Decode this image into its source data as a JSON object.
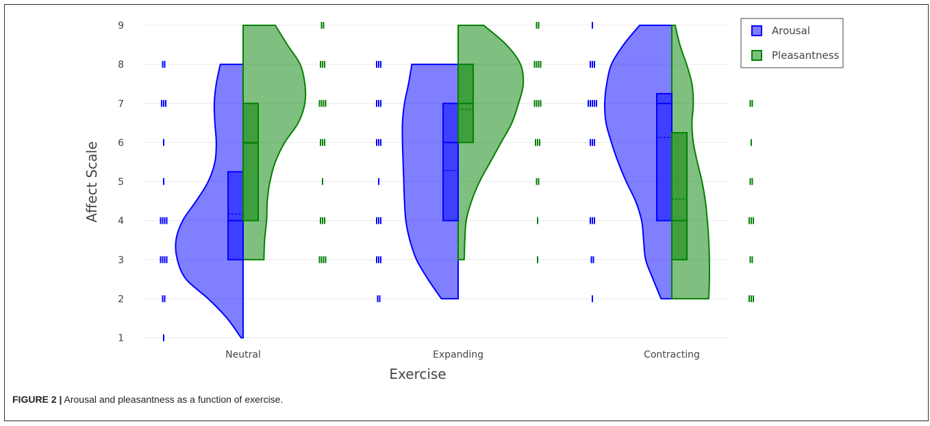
{
  "caption": {
    "label": "FIGURE 2 |",
    "text": "Arousal and pleasantness as a function of exercise."
  },
  "chart_data": {
    "type": "violin",
    "title": "",
    "xlabel": "Exercise",
    "ylabel": "Affect Scale",
    "categories": [
      "Neutral",
      "Expanding",
      "Contracting"
    ],
    "y_ticks": [
      1,
      2,
      3,
      4,
      5,
      6,
      7,
      8,
      9
    ],
    "ylim": [
      1,
      9
    ],
    "grid": true,
    "legend_position": "top-right",
    "colors": {
      "Arousal": "#0000ff",
      "Pleasantness": "#008000",
      "grid": "#e9e9e9",
      "text": "#444444"
    },
    "series": [
      {
        "name": "Arousal",
        "side": "negative",
        "groups": [
          {
            "category": "Neutral",
            "box": {
              "q1": 3,
              "median": 4,
              "q3": 5.25,
              "mean": 4.17
            },
            "range": [
              1,
              8
            ],
            "density": [
              [
                1,
                0.03
              ],
              [
                1.5,
                0.24
              ],
              [
                2,
                0.52
              ],
              [
                2.5,
                0.85
              ],
              [
                3,
                0.98
              ],
              [
                3.5,
                1.0
              ],
              [
                4,
                0.9
              ],
              [
                4.5,
                0.7
              ],
              [
                5,
                0.52
              ],
              [
                5.5,
                0.42
              ],
              [
                6,
                0.4
              ],
              [
                6.5,
                0.42
              ],
              [
                7,
                0.43
              ],
              [
                7.5,
                0.4
              ],
              [
                8,
                0.34
              ]
            ],
            "points": [
              {
                "y": 1,
                "n": 1
              },
              {
                "y": 2,
                "n": 2
              },
              {
                "y": 3,
                "n": 4
              },
              {
                "y": 4,
                "n": 4
              },
              {
                "y": 5,
                "n": 1
              },
              {
                "y": 6,
                "n": 1
              },
              {
                "y": 7,
                "n": 3
              },
              {
                "y": 8,
                "n": 2
              }
            ]
          },
          {
            "category": "Expanding",
            "box": {
              "q1": 4,
              "median": 6,
              "q3": 7,
              "mean": 5.28
            },
            "range": [
              2,
              8
            ],
            "density": [
              [
                2,
                0.25
              ],
              [
                2.5,
                0.45
              ],
              [
                3,
                0.62
              ],
              [
                3.5,
                0.72
              ],
              [
                4,
                0.78
              ],
              [
                4.5,
                0.8
              ],
              [
                5,
                0.81
              ],
              [
                5.5,
                0.82
              ],
              [
                6,
                0.83
              ],
              [
                6.5,
                0.83
              ],
              [
                7,
                0.8
              ],
              [
                7.5,
                0.74
              ],
              [
                8,
                0.69
              ]
            ],
            "points": [
              {
                "y": 2,
                "n": 2
              },
              {
                "y": 3,
                "n": 3
              },
              {
                "y": 4,
                "n": 3
              },
              {
                "y": 5,
                "n": 1
              },
              {
                "y": 6,
                "n": 3
              },
              {
                "y": 7,
                "n": 3
              },
              {
                "y": 8,
                "n": 3
              }
            ]
          },
          {
            "category": "Contracting",
            "box": {
              "q1": 4,
              "median": 7,
              "q3": 7.25,
              "mean": 6.13
            },
            "range": [
              2,
              9
            ],
            "density": [
              [
                2,
                0.16
              ],
              [
                2.5,
                0.28
              ],
              [
                3,
                0.39
              ],
              [
                3.5,
                0.42
              ],
              [
                4,
                0.45
              ],
              [
                4.5,
                0.54
              ],
              [
                5,
                0.68
              ],
              [
                5.5,
                0.8
              ],
              [
                6,
                0.9
              ],
              [
                6.5,
                0.98
              ],
              [
                7,
                1.0
              ],
              [
                7.5,
                0.97
              ],
              [
                8,
                0.9
              ],
              [
                8.5,
                0.72
              ],
              [
                9,
                0.48
              ]
            ],
            "points": [
              {
                "y": 2,
                "n": 1
              },
              {
                "y": 3,
                "n": 2
              },
              {
                "y": 4,
                "n": 3
              },
              {
                "y": 6,
                "n": 3
              },
              {
                "y": 7,
                "n": 5
              },
              {
                "y": 8,
                "n": 3
              },
              {
                "y": 9,
                "n": 1
              }
            ]
          }
        ]
      },
      {
        "name": "Pleasantness",
        "side": "positive",
        "groups": [
          {
            "category": "Neutral",
            "box": {
              "q1": 4,
              "median": 6,
              "q3": 7,
              "mean": 5.97
            },
            "range": [
              3,
              9
            ],
            "density": [
              [
                3,
                0.31
              ],
              [
                3.5,
                0.32
              ],
              [
                4,
                0.35
              ],
              [
                4.5,
                0.36
              ],
              [
                5,
                0.4
              ],
              [
                5.5,
                0.48
              ],
              [
                6,
                0.62
              ],
              [
                6.5,
                0.82
              ],
              [
                7,
                0.92
              ],
              [
                7.5,
                0.92
              ],
              [
                8,
                0.85
              ],
              [
                8.5,
                0.66
              ],
              [
                9,
                0.48
              ]
            ],
            "points": [
              {
                "y": 3,
                "n": 4
              },
              {
                "y": 4,
                "n": 3
              },
              {
                "y": 5,
                "n": 1
              },
              {
                "y": 6,
                "n": 3
              },
              {
                "y": 7,
                "n": 4
              },
              {
                "y": 8,
                "n": 3
              },
              {
                "y": 9,
                "n": 2
              }
            ]
          },
          {
            "category": "Expanding",
            "box": {
              "q1": 6,
              "median": 7,
              "q3": 8,
              "mean": 6.85
            },
            "range": [
              3,
              9
            ],
            "density": [
              [
                3,
                0.09
              ],
              [
                3.5,
                0.1
              ],
              [
                4,
                0.12
              ],
              [
                4.5,
                0.2
              ],
              [
                5,
                0.32
              ],
              [
                5.5,
                0.48
              ],
              [
                6,
                0.64
              ],
              [
                6.5,
                0.8
              ],
              [
                7,
                0.9
              ],
              [
                7.5,
                0.97
              ],
              [
                8,
                0.93
              ],
              [
                8.5,
                0.72
              ],
              [
                9,
                0.38
              ]
            ],
            "points": [
              {
                "y": 3,
                "n": 1
              },
              {
                "y": 4,
                "n": 1
              },
              {
                "y": 5,
                "n": 2
              },
              {
                "y": 6,
                "n": 3
              },
              {
                "y": 7,
                "n": 4
              },
              {
                "y": 8,
                "n": 4
              },
              {
                "y": 9,
                "n": 2
              }
            ]
          },
          {
            "category": "Contracting",
            "box": {
              "q1": 3,
              "median": 4,
              "q3": 6.25,
              "mean": 4.55
            },
            "range": [
              2,
              9
            ],
            "density": [
              [
                2,
                0.55
              ],
              [
                2.5,
                0.56
              ],
              [
                3,
                0.56
              ],
              [
                3.5,
                0.55
              ],
              [
                4,
                0.53
              ],
              [
                4.5,
                0.5
              ],
              [
                5,
                0.45
              ],
              [
                5.5,
                0.38
              ],
              [
                6,
                0.32
              ],
              [
                6.5,
                0.3
              ],
              [
                7,
                0.32
              ],
              [
                7.5,
                0.3
              ],
              [
                8,
                0.22
              ],
              [
                8.5,
                0.12
              ],
              [
                9,
                0.05
              ]
            ],
            "points": [
              {
                "y": 2,
                "n": 3
              },
              {
                "y": 3,
                "n": 2
              },
              {
                "y": 4,
                "n": 3
              },
              {
                "y": 5,
                "n": 2
              },
              {
                "y": 6,
                "n": 1
              },
              {
                "y": 7,
                "n": 2
              },
              {
                "y": 9,
                "n": 1
              }
            ]
          }
        ]
      }
    ]
  }
}
